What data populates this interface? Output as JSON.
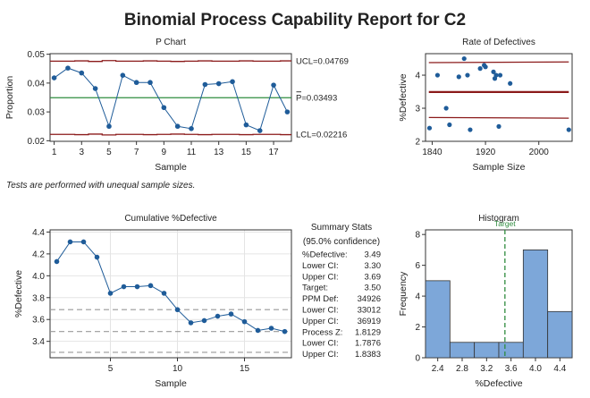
{
  "report_title": "Binomial Process Capability Report for C2",
  "note": "Tests are performed with unequal sample sizes.",
  "colors": {
    "point": "#1f5c99",
    "line": "#1f5c99",
    "center_line": "#2e8b3e",
    "control_limit": "#8b1a1a",
    "bar_fill": "#7da7d9",
    "bar_edge": "#333333",
    "target": "#2e8b3e",
    "ref_dashed": "#999999",
    "grid": "#e4e4e4"
  },
  "summary_stats": {
    "title": "Summary Stats",
    "subtitle": "(95.0% confidence)",
    "rows": [
      {
        "label": "%Defective:",
        "value": "3.49"
      },
      {
        "label": "Lower CI:",
        "value": "3.30"
      },
      {
        "label": "Upper CI:",
        "value": "3.69"
      },
      {
        "label": "Target:",
        "value": "3.50"
      },
      {
        "label": "PPM Def:",
        "value": "34926"
      },
      {
        "label": "Lower CI:",
        "value": "33012"
      },
      {
        "label": "Upper CI:",
        "value": "36919"
      },
      {
        "label": "Process Z:",
        "value": "1.8129"
      },
      {
        "label": "Lower CI:",
        "value": "1.7876"
      },
      {
        "label": "Upper CI:",
        "value": "1.8383"
      }
    ]
  },
  "chart_data": [
    {
      "type": "line",
      "title": "P Chart",
      "xlabel": "Sample",
      "ylabel": "Proportion",
      "x": [
        1,
        2,
        3,
        4,
        5,
        6,
        7,
        8,
        9,
        10,
        11,
        12,
        13,
        14,
        15,
        16,
        17,
        18
      ],
      "y": [
        0.0418,
        0.0452,
        0.0435,
        0.0381,
        0.025,
        0.0427,
        0.0402,
        0.0402,
        0.0315,
        0.025,
        0.0242,
        0.0395,
        0.0398,
        0.0405,
        0.0255,
        0.0235,
        0.0393,
        0.03
      ],
      "xticks": [
        1,
        3,
        5,
        7,
        9,
        11,
        13,
        15,
        17
      ],
      "yticks": [
        0.02,
        0.03,
        0.04,
        0.05
      ],
      "ytick_labels": [
        "0.02",
        "0.03",
        "0.04",
        "0.05"
      ],
      "xlim": [
        0.7,
        18.3
      ],
      "ylim": [
        0.0198,
        0.0502
      ],
      "ucl": [
        0.0476,
        0.0476,
        0.0477,
        0.0475,
        0.0478,
        0.0476,
        0.0476,
        0.0477,
        0.0476,
        0.0475,
        0.0476,
        0.0477,
        0.0476,
        0.0476,
        0.0477,
        0.0476,
        0.0476,
        0.0477
      ],
      "lcl": [
        0.0222,
        0.0222,
        0.0221,
        0.0223,
        0.022,
        0.0222,
        0.0222,
        0.0221,
        0.0222,
        0.0223,
        0.0222,
        0.0221,
        0.0222,
        0.0222,
        0.0221,
        0.0222,
        0.0222,
        0.0221
      ],
      "center": 0.03493,
      "ucl_label": "UCL=0.04769",
      "center_label": "P=0.03493",
      "lcl_label": "LCL=0.02216",
      "grid": false
    },
    {
      "type": "scatter",
      "title": "Rate of Defectives",
      "xlabel": "Sample Size",
      "ylabel": "%Defective",
      "x": [
        1836,
        1848,
        1861,
        1866,
        1880,
        1888,
        1893,
        1897,
        1912,
        1918,
        1920,
        1932,
        1934,
        1936,
        1940,
        1942,
        1957,
        2045
      ],
      "y": [
        2.4,
        4.0,
        3.0,
        2.5,
        3.95,
        4.5,
        4.0,
        2.35,
        4.2,
        4.3,
        4.25,
        4.1,
        3.9,
        4.0,
        2.45,
        4.0,
        3.75,
        2.35
      ],
      "xticks": [
        1840,
        1920,
        2000
      ],
      "yticks": [
        2,
        3,
        4
      ],
      "xlim": [
        1830,
        2050
      ],
      "ylim": [
        2.0,
        4.65
      ],
      "center": 3.49,
      "ucl_x": [
        1835,
        2045
      ],
      "ucl_y": [
        4.38,
        4.4
      ],
      "lcl_x": [
        1835,
        2045
      ],
      "lcl_y": [
        2.72,
        2.7
      ],
      "grid": false
    },
    {
      "type": "line",
      "title": "Cumulative %Defective",
      "xlabel": "Sample",
      "ylabel": "%Defective",
      "x": [
        1,
        2,
        3,
        4,
        5,
        6,
        7,
        8,
        9,
        10,
        11,
        12,
        13,
        14,
        15,
        16,
        17,
        18
      ],
      "y": [
        4.13,
        4.31,
        4.31,
        4.17,
        3.84,
        3.9,
        3.9,
        3.91,
        3.84,
        3.69,
        3.57,
        3.59,
        3.63,
        3.65,
        3.58,
        3.5,
        3.52,
        3.49
      ],
      "xticks": [
        5,
        10,
        15
      ],
      "yticks": [
        3.4,
        3.6,
        3.8,
        4.0,
        4.2,
        4.4
      ],
      "ytick_labels": [
        "3.4",
        "3.6",
        "3.8",
        "4.0",
        "4.2",
        "4.4"
      ],
      "xlim": [
        0.5,
        18.5
      ],
      "ylim": [
        3.25,
        4.42
      ],
      "reference_lines": [
        3.69,
        3.49,
        3.3
      ],
      "grid": true
    },
    {
      "type": "bar",
      "title": "Histogram",
      "xlabel": "%Defective",
      "ylabel": "Frequency",
      "bin_edges": [
        2.2,
        2.6,
        3.0,
        3.4,
        3.8,
        4.2,
        4.6
      ],
      "values": [
        5,
        1,
        1,
        1,
        7,
        3
      ],
      "xticks": [
        2.4,
        2.8,
        3.2,
        3.6,
        4.0,
        4.4
      ],
      "xtick_labels": [
        "2.4",
        "2.8",
        "3.2",
        "3.6",
        "4.0",
        "4.4"
      ],
      "yticks": [
        0,
        2,
        4,
        6,
        8
      ],
      "xlim": [
        2.2,
        4.6
      ],
      "ylim": [
        0,
        8.3
      ],
      "target": 3.5,
      "target_label": "Target",
      "grid": false
    }
  ]
}
